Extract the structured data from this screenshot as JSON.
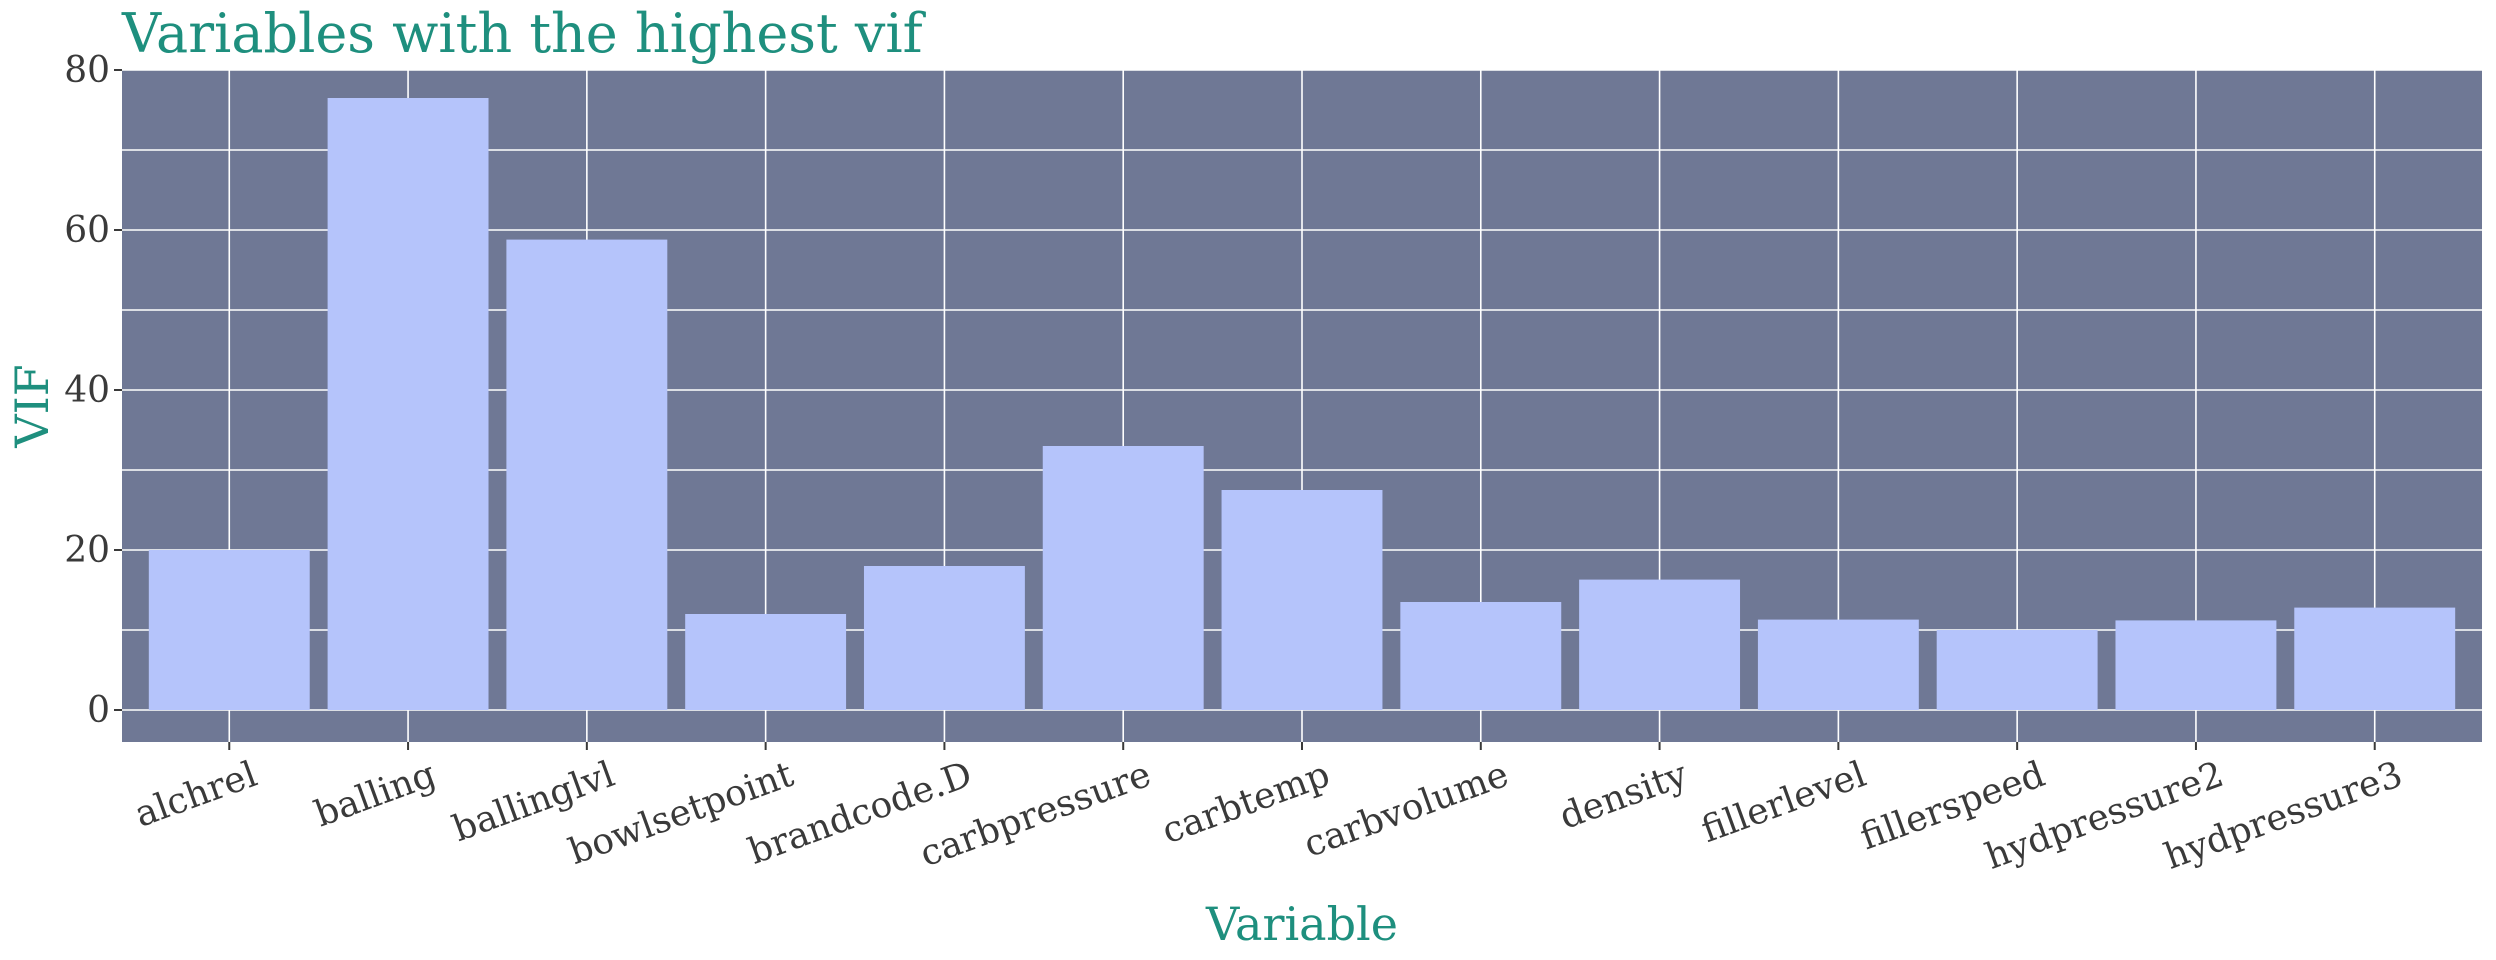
{
  "colors": {
    "panel_background": "#6f7895",
    "bar_fill": "#b5c4fb",
    "grid": "#ffffff",
    "title_text": "#1e8f7e",
    "tick_text": "#3a3a3a"
  },
  "chart_data": {
    "type": "bar",
    "title": "Variables with the highest vif",
    "xlabel": "Variable",
    "ylabel": "VIF",
    "categories": [
      "alchrel",
      "balling",
      "ballinglvl",
      "bowlsetpoint",
      "brandcode.D",
      "carbpressure",
      "carbtemp",
      "carbvolume",
      "density",
      "fillerlevel",
      "fillerspeed",
      "hydpressure2",
      "hydpressure3"
    ],
    "values": [
      20,
      76.5,
      58.8,
      12,
      18,
      33,
      27.5,
      13.5,
      16.3,
      11.3,
      10,
      11.2,
      12.8
    ],
    "ylim": [
      -4,
      80
    ],
    "yticks": [
      0,
      20,
      40,
      60,
      80
    ],
    "ytick_labels": [
      "0",
      "20",
      "40",
      "60",
      "80"
    ],
    "grid": true,
    "legend": "none"
  }
}
